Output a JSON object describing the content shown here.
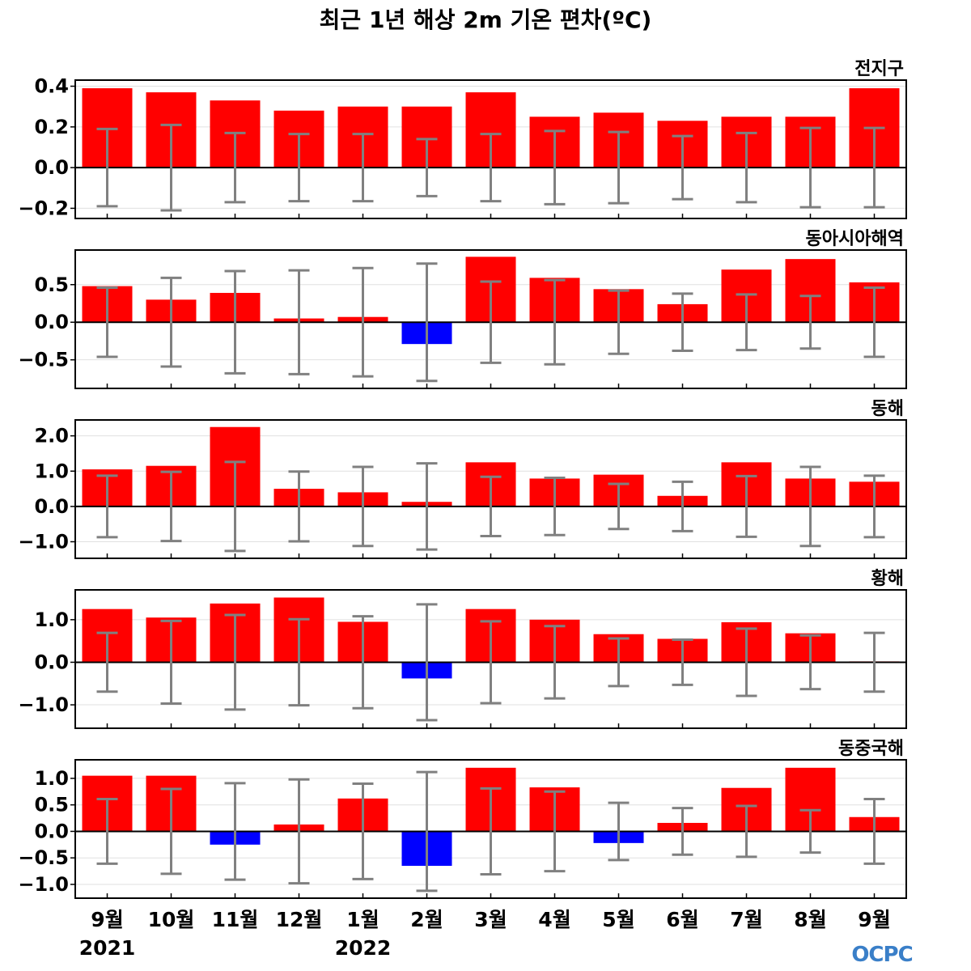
{
  "title": "최근 1년 해상 2m 기온 편차(ºC)",
  "months": [
    "9월",
    "10월",
    "11월",
    "12월",
    "1월",
    "2월",
    "3월",
    "4월",
    "5월",
    "6월",
    "7월",
    "8월",
    "9월"
  ],
  "years": [
    "2021",
    "2022"
  ],
  "logo": "OCPC",
  "colors": {
    "positive": "#ff0000",
    "negative": "#0000ff",
    "errorbar": "#808080",
    "zero_line": "#000000",
    "grid": "#e0e0e0"
  },
  "chart_data": [
    {
      "type": "bar",
      "region": "전지구",
      "categories": [
        "9월",
        "10월",
        "11월",
        "12월",
        "1월",
        "2월",
        "3월",
        "4월",
        "5월",
        "6월",
        "7월",
        "8월",
        "9월"
      ],
      "values": [
        0.39,
        0.37,
        0.33,
        0.28,
        0.3,
        0.3,
        0.37,
        0.25,
        0.27,
        0.23,
        0.25,
        0.25,
        0.39
      ],
      "error_bounds": [
        0.19,
        0.21,
        0.17,
        0.165,
        0.165,
        0.14,
        0.165,
        0.18,
        0.175,
        0.155,
        0.17,
        0.195,
        0.195
      ],
      "ylim": [
        -0.25,
        0.43
      ],
      "yticks": [
        -0.2,
        0.0,
        0.2,
        0.4
      ],
      "ytick_labels": [
        "−0.2",
        "0.0",
        "0.2",
        "0.4"
      ]
    },
    {
      "type": "bar",
      "region": "동아시아해역",
      "categories": [
        "9월",
        "10월",
        "11월",
        "12월",
        "1월",
        "2월",
        "3월",
        "4월",
        "5월",
        "6월",
        "7월",
        "8월",
        "9월"
      ],
      "values": [
        0.48,
        0.3,
        0.39,
        0.05,
        0.07,
        -0.29,
        0.87,
        0.59,
        0.44,
        0.24,
        0.7,
        0.84,
        0.53
      ],
      "error_bounds": [
        0.46,
        0.59,
        0.68,
        0.69,
        0.72,
        0.78,
        0.54,
        0.56,
        0.42,
        0.38,
        0.37,
        0.35,
        0.46
      ],
      "ylim": [
        -0.88,
        0.96
      ],
      "yticks": [
        -0.5,
        0.0,
        0.5
      ],
      "ytick_labels": [
        "−0.5",
        "0.0",
        "0.5"
      ]
    },
    {
      "type": "bar",
      "region": "동해",
      "categories": [
        "9월",
        "10월",
        "11월",
        "12월",
        "1월",
        "2월",
        "3월",
        "4월",
        "5월",
        "6월",
        "7월",
        "8월",
        "9월"
      ],
      "values": [
        1.05,
        1.15,
        2.25,
        0.5,
        0.4,
        0.13,
        1.25,
        0.79,
        0.9,
        0.3,
        1.25,
        0.79,
        0.7
      ],
      "error_bounds": [
        0.87,
        0.98,
        1.26,
        0.99,
        1.12,
        1.22,
        0.84,
        0.81,
        0.64,
        0.7,
        0.86,
        1.12,
        0.87
      ],
      "ylim": [
        -1.47,
        2.45
      ],
      "yticks": [
        -1.0,
        0.0,
        1.0,
        2.0
      ],
      "ytick_labels": [
        "−1.0",
        "0.0",
        "1.0",
        "2.0"
      ]
    },
    {
      "type": "bar",
      "region": "황해",
      "categories": [
        "9월",
        "10월",
        "11월",
        "12월",
        "1월",
        "2월",
        "3월",
        "4월",
        "5월",
        "6월",
        "7월",
        "8월",
        "9월"
      ],
      "values": [
        1.25,
        1.05,
        1.38,
        1.52,
        0.95,
        -0.38,
        1.25,
        1.0,
        0.66,
        0.55,
        0.94,
        0.68,
        0.02
      ],
      "error_bounds": [
        0.69,
        0.97,
        1.11,
        1.01,
        1.08,
        1.36,
        0.96,
        0.85,
        0.56,
        0.53,
        0.79,
        0.63,
        0.69
      ],
      "ylim": [
        -1.55,
        1.7
      ],
      "yticks": [
        -1.0,
        0.0,
        1.0
      ],
      "ytick_labels": [
        "−1.0",
        "0.0",
        "1.0"
      ]
    },
    {
      "type": "bar",
      "region": "동중국해",
      "categories": [
        "9월",
        "10월",
        "11월",
        "12월",
        "1월",
        "2월",
        "3월",
        "4월",
        "5월",
        "6월",
        "7월",
        "8월",
        "9월"
      ],
      "values": [
        1.05,
        1.05,
        -0.25,
        0.13,
        0.62,
        -0.65,
        1.2,
        0.83,
        -0.22,
        0.16,
        0.82,
        1.2,
        0.27
      ],
      "error_bounds": [
        0.61,
        0.8,
        0.91,
        0.98,
        0.9,
        1.12,
        0.81,
        0.75,
        0.54,
        0.44,
        0.48,
        0.4,
        0.61
      ],
      "ylim": [
        -1.26,
        1.35
      ],
      "yticks": [
        -1.0,
        -0.5,
        0.0,
        0.5,
        1.0
      ],
      "ytick_labels": [
        "−1.0",
        "−0.5",
        "0.0",
        "0.5",
        "1.0"
      ]
    }
  ]
}
